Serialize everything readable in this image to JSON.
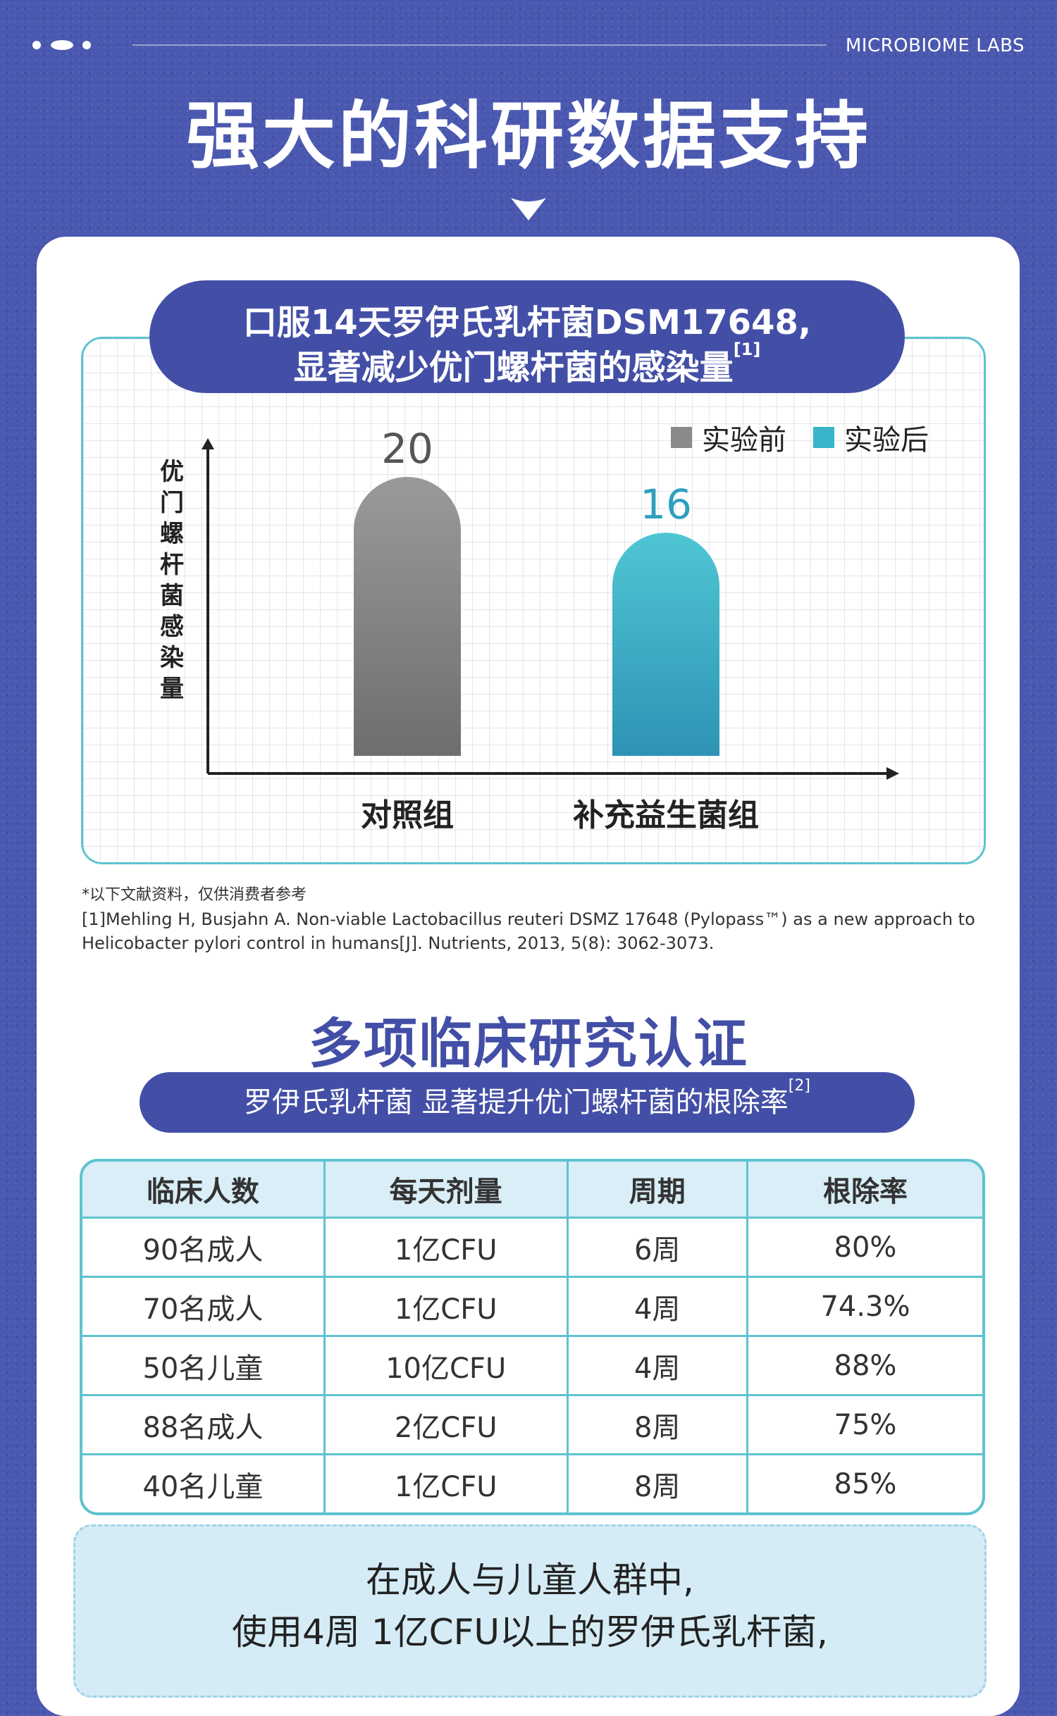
{
  "header": {
    "brand": "MICROBIOME LABS",
    "title": "强大的科研数据支持"
  },
  "chart_section": {
    "title_line1": "口服14天罗伊氏乳杆菌DSM17648,",
    "title_line2": "显著减少优门螺杆菌的感染量",
    "title_ref": "[1]"
  },
  "chart_data": {
    "type": "bar",
    "categories": [
      "对照组",
      "补充益生菌组"
    ],
    "ylabel": "优门螺杆菌感染量",
    "series": [
      {
        "name": "实验前",
        "color": "#8a8a8a",
        "values": [
          20,
          null
        ]
      },
      {
        "name": "实验后",
        "color": "#39b4c8",
        "values": [
          null,
          16
        ]
      }
    ],
    "ylim": [
      0,
      22
    ]
  },
  "references": {
    "note": "*以下文献资料，仅供消费者参考",
    "ref1": "[1]Mehling H, Busjahn A. Non-viable Lactobacillus reuteri DSMZ 17648 (Pylopass™) as a new approach to Helicobacter pylori control in humans[J]. Nutrients, 2013, 5(8): 3062-3073."
  },
  "clinical": {
    "title": "多项临床研究认证",
    "subtitle": "罗伊氏乳杆菌 显著提升优门螺杆菌的根除率",
    "subtitle_ref": "[2]",
    "headers": [
      "临床人数",
      "每天剂量",
      "周期",
      "根除率"
    ],
    "rows": [
      [
        "90名成人",
        "1亿CFU",
        "6周",
        "80%"
      ],
      [
        "70名成人",
        "1亿CFU",
        "4周",
        "74.3%"
      ],
      [
        "50名儿童",
        "10亿CFU",
        "4周",
        "88%"
      ],
      [
        "88名成人",
        "2亿CFU",
        "8周",
        "75%"
      ],
      [
        "40名儿童",
        "1亿CFU",
        "8周",
        "85%"
      ]
    ]
  },
  "note_box": {
    "line1": "在成人与儿童人群中,",
    "line2": "使用4周 1亿CFU以上的罗伊氏乳杆菌,"
  }
}
